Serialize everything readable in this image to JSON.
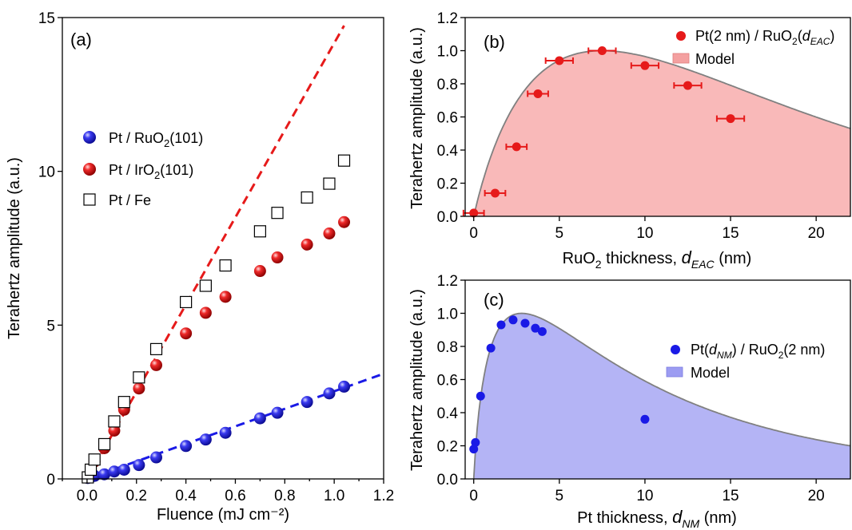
{
  "chart_data": [
    {
      "id": "a",
      "type": "scatter",
      "panel_label": "(a)",
      "xlabel": "Fluence (mJ cm⁻²)",
      "ylabel": "Terahertz amplitude (a.u.)",
      "xlim": [
        -0.1,
        1.2
      ],
      "ylim": [
        0,
        15
      ],
      "xticks": [
        0.0,
        0.2,
        0.4,
        0.6,
        0.8,
        1.0,
        1.2
      ],
      "xtick_labels": [
        "0.0",
        "0.2",
        "0.4",
        "0.6",
        "0.8",
        "1.0",
        "1.2"
      ],
      "yticks": [
        0,
        5,
        10,
        15
      ],
      "ytick_labels": [
        "0",
        "5",
        "10",
        "15"
      ],
      "legend_position": "center-left",
      "series": [
        {
          "name": "Pt / RuO₂(101)",
          "name_main": "Pt / RuO",
          "name_sub": "2",
          "name_tail": "(101)",
          "marker": "sphere",
          "color": "#1a1ae6",
          "x": [
            0.003,
            0.015,
            0.03,
            0.07,
            0.11,
            0.15,
            0.21,
            0.28,
            0.4,
            0.48,
            0.56,
            0.7,
            0.77,
            0.89,
            0.98,
            1.04
          ],
          "y": [
            0.03,
            0.06,
            0.1,
            0.15,
            0.24,
            0.3,
            0.45,
            0.7,
            1.07,
            1.28,
            1.5,
            1.97,
            2.15,
            2.5,
            2.78,
            3.0
          ]
        },
        {
          "name": "Pt / IrO₂(101)",
          "name_main": "Pt / IrO",
          "name_sub": "2",
          "name_tail": "(101)",
          "marker": "sphere",
          "color": "#e61a1a",
          "x": [
            0.003,
            0.015,
            0.03,
            0.07,
            0.11,
            0.15,
            0.21,
            0.28,
            0.4,
            0.48,
            0.56,
            0.7,
            0.77,
            0.89,
            0.98,
            1.04
          ],
          "y": [
            0.08,
            0.25,
            0.57,
            1.0,
            1.57,
            2.25,
            2.94,
            3.7,
            4.73,
            5.4,
            5.92,
            6.76,
            7.2,
            7.62,
            7.98,
            8.35
          ]
        },
        {
          "name": "Pt / Fe",
          "name_main": "Pt / Fe",
          "name_sub": "",
          "name_tail": "",
          "marker": "open-square",
          "color": "#000000",
          "x": [
            0.003,
            0.015,
            0.03,
            0.07,
            0.11,
            0.15,
            0.21,
            0.28,
            0.4,
            0.48,
            0.56,
            0.7,
            0.77,
            0.89,
            0.98,
            1.04
          ],
          "y": [
            0.05,
            0.3,
            0.63,
            1.13,
            1.87,
            2.5,
            3.3,
            4.22,
            5.75,
            6.28,
            6.94,
            8.05,
            8.65,
            9.15,
            9.6,
            10.35
          ]
        }
      ],
      "fits": [
        {
          "series": "Pt / RuO₂(101)",
          "style": "dashed",
          "color": "#1a1ae6",
          "slope": 2.85,
          "x_range": [
            0.0,
            1.2
          ]
        },
        {
          "series": "Pt / IrO₂(101)",
          "style": "dashed",
          "color": "#e61a1a",
          "slope": 14.17,
          "x_range": [
            0.0,
            1.04
          ]
        }
      ]
    },
    {
      "id": "b",
      "type": "scatter",
      "panel_label": "(b)",
      "xlabel_main": "RuO",
      "xlabel_sub": "2",
      "xlabel_mid": " thickness, ",
      "xlabel_var": "d",
      "xlabel_var_sub": "EAC",
      "xlabel_unit": " (nm)",
      "ylabel": "Terahertz amplitude (a.u.)",
      "xlim": [
        -0.5,
        22
      ],
      "ylim": [
        0,
        1.2
      ],
      "xticks": [
        0,
        5,
        10,
        15,
        20
      ],
      "xtick_labels": [
        "0",
        "5",
        "10",
        "15",
        "20"
      ],
      "yticks": [
        0,
        0.2,
        0.4,
        0.6,
        0.8,
        1.0,
        1.2
      ],
      "ytick_labels": [
        "0.0",
        "0.2",
        "0.4",
        "0.6",
        "0.8",
        "1.0",
        "1.2"
      ],
      "legend_position": "top-right",
      "legend_items": [
        {
          "kind": "point",
          "label_prefix": "Pt(2 nm) / RuO",
          "label_sub": "2",
          "label_mid": "(",
          "label_var": "d",
          "label_var_sub": "EAC",
          "label_suffix": ")"
        },
        {
          "kind": "area",
          "label": "Model"
        }
      ],
      "series": [
        {
          "name": "Pt(2 nm) / RuO₂(d_EAC)",
          "color": "#e61a1a",
          "x": [
            0,
            1.25,
            2.5,
            3.75,
            5,
            7.5,
            10,
            12.5,
            15
          ],
          "y": [
            0.02,
            0.14,
            0.42,
            0.74,
            0.94,
            1.0,
            0.91,
            0.79,
            0.59
          ],
          "x_err": [
            0.6,
            0.6,
            0.6,
            0.6,
            0.8,
            0.8,
            0.8,
            0.8,
            0.8
          ]
        }
      ],
      "model": {
        "name": "Model",
        "fill_color": "#f9b9b9",
        "line_color": "#808080",
        "peak_x": 7.5,
        "peak_y": 1.0,
        "end_value_at_22": 0.53
      }
    },
    {
      "id": "c",
      "type": "scatter",
      "panel_label": "(c)",
      "xlabel_main": "Pt thickness, ",
      "xlabel_var": "d",
      "xlabel_var_sub": "NM",
      "xlabel_unit": " (nm)",
      "ylabel": "Terahertz amplitude (a.u.)",
      "xlim": [
        -0.5,
        22
      ],
      "ylim": [
        0,
        1.2
      ],
      "xticks": [
        0,
        5,
        10,
        15,
        20
      ],
      "xtick_labels": [
        "0",
        "5",
        "10",
        "15",
        "20"
      ],
      "yticks": [
        0,
        0.2,
        0.4,
        0.6,
        0.8,
        1.0,
        1.2
      ],
      "ytick_labels": [
        "0.0",
        "0.2",
        "0.4",
        "0.6",
        "0.8",
        "1.0",
        "1.2"
      ],
      "legend_position": "right",
      "legend_items": [
        {
          "kind": "point",
          "label_prefix": "Pt(",
          "label_var": "d",
          "label_var_sub": "NM",
          "label_mid": ") / RuO",
          "label_sub": "2",
          "label_suffix": "(2 nm)"
        },
        {
          "kind": "area",
          "label": "Model"
        }
      ],
      "series": [
        {
          "name": "Pt(d_NM) / RuO₂(2 nm)",
          "color": "#1a1ae6",
          "x": [
            0.0,
            0.1,
            0.4,
            1.0,
            1.6,
            2.3,
            3.0,
            3.6,
            4.0,
            10.0
          ],
          "y": [
            0.18,
            0.22,
            0.5,
            0.79,
            0.93,
            0.96,
            0.94,
            0.91,
            0.89,
            0.36
          ]
        }
      ],
      "model": {
        "name": "Model",
        "fill_color": "#b4b4f5",
        "line_color": "#808080",
        "peak_x": 2.8,
        "peak_y": 1.0,
        "end_value_at_22": 0.2
      }
    }
  ]
}
